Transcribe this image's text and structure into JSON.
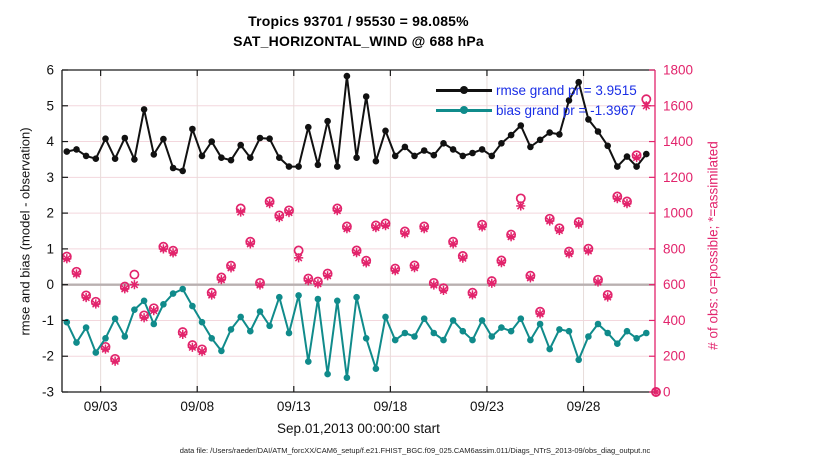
{
  "title": {
    "line1": "Tropics 93701 / 95530 = 98.085%",
    "line2": "SAT_HORIZONTAL_WIND @ 688 hPa"
  },
  "legend": {
    "items": [
      {
        "label": "rmse grand pr = 3.9515",
        "series": "rmse"
      },
      {
        "label": "bias grand pr = -1.3967",
        "series": "bias"
      }
    ],
    "text_color": "#1a2ee6"
  },
  "footer": {
    "datafile": "data file: /Users/raeder/DAI/ATM_forcXX/CAM6_setup/f.e21.FHIST_BGC.f09_025.CAM6assim.011/Diags_NTrS_2013-09/obs_diag_output.nc"
  },
  "colors": {
    "rmse": "#111111",
    "bias": "#108b8b",
    "obs": "#e2246c",
    "grid_h": "#f3d7dd",
    "grid_v": "#e7dcda",
    "zero_line": "#b9b0b0",
    "frame": "#1a1a1a",
    "tick_label_left": "#111111"
  },
  "chart_data": {
    "type": "line",
    "title": "Tropics 93701 / 95530 = 98.085%",
    "subtitle": "SAT_HORIZONTAL_WIND @ 688 hPa",
    "xlabel": "Sep.01,2013 00:00:00 start",
    "ylabel_left": "rmse and bias (model - observation)",
    "ylabel_right": "# of obs: o=possible; *=assimilated",
    "grid": true,
    "legend_position": "top-right-inside",
    "xlim_days": [
      1.0,
      31.7
    ],
    "ylim_left": [
      -3,
      6
    ],
    "ylim_right": [
      0,
      1800
    ],
    "xticks": {
      "positions": [
        3,
        8,
        13,
        18,
        23,
        28
      ],
      "labels": [
        "09/03",
        "09/08",
        "09/13",
        "09/18",
        "09/23",
        "09/28"
      ]
    },
    "yticks_left": [
      -3,
      -2,
      -1,
      0,
      1,
      2,
      3,
      4,
      5,
      6
    ],
    "yticks_right": [
      0,
      200,
      400,
      600,
      800,
      1000,
      1200,
      1400,
      1600,
      1800
    ],
    "zero_reference_line": 0,
    "x_days": [
      1.25,
      1.75,
      2.25,
      2.75,
      3.25,
      3.75,
      4.25,
      4.75,
      5.25,
      5.75,
      6.25,
      6.75,
      7.25,
      7.75,
      8.25,
      8.75,
      9.25,
      9.75,
      10.25,
      10.75,
      11.25,
      11.75,
      12.25,
      12.75,
      13.25,
      13.75,
      14.25,
      14.75,
      15.25,
      15.75,
      16.25,
      16.75,
      17.25,
      17.75,
      18.25,
      18.75,
      19.25,
      19.75,
      20.25,
      20.75,
      21.25,
      21.75,
      22.25,
      22.75,
      23.25,
      23.75,
      24.25,
      24.75,
      25.25,
      25.75,
      26.25,
      26.75,
      27.25,
      27.75,
      28.25,
      28.75,
      29.25,
      29.75,
      30.25,
      30.75,
      31.25,
      31.75
    ],
    "series": [
      {
        "name": "rmse",
        "axis": "left",
        "color": "#111111",
        "marker": "dot",
        "grand_value": 3.9515,
        "values": [
          3.72,
          3.78,
          3.6,
          3.52,
          4.08,
          3.52,
          4.1,
          3.5,
          4.9,
          3.64,
          4.07,
          3.26,
          3.18,
          4.35,
          3.6,
          4.0,
          3.55,
          3.48,
          3.9,
          3.55,
          4.1,
          4.08,
          3.55,
          3.3,
          3.3,
          4.4,
          3.35,
          4.57,
          3.3,
          5.83,
          3.55,
          5.26,
          3.45,
          4.3,
          3.6,
          3.85,
          3.6,
          3.75,
          3.62,
          3.95,
          3.78,
          3.6,
          3.68,
          3.78,
          3.6,
          3.95,
          4.18,
          4.45,
          3.85,
          4.05,
          4.25,
          4.2,
          5.15,
          5.66,
          4.62,
          4.28,
          3.88,
          3.3,
          3.58,
          3.3,
          3.65,
          null
        ]
      },
      {
        "name": "bias",
        "axis": "left",
        "color": "#108b8b",
        "marker": "dot",
        "grand_value": -1.3967,
        "values": [
          -1.05,
          -1.62,
          -1.2,
          -1.9,
          -1.5,
          -0.95,
          -1.45,
          -0.7,
          -0.45,
          -1.1,
          -0.55,
          -0.25,
          -0.12,
          -0.6,
          -1.05,
          -1.5,
          -1.85,
          -1.25,
          -0.9,
          -1.3,
          -0.75,
          -1.15,
          -0.35,
          -1.35,
          -0.3,
          -2.15,
          -0.4,
          -2.5,
          -0.45,
          -2.6,
          -0.35,
          -1.5,
          -2.35,
          -0.9,
          -1.55,
          -1.35,
          -1.45,
          -0.95,
          -1.35,
          -1.55,
          -1.0,
          -1.3,
          -1.55,
          -1.0,
          -1.45,
          -1.2,
          -1.3,
          -0.95,
          -1.55,
          -1.1,
          -1.8,
          -1.25,
          -1.3,
          -2.1,
          -1.45,
          -1.1,
          -1.35,
          -1.65,
          -1.3,
          -1.5,
          -1.35,
          null
        ]
      },
      {
        "name": "possible",
        "axis": "right",
        "color": "#e2246c",
        "marker": "circle-open",
        "values": [
          757,
          672,
          540,
          504,
          252,
          185,
          589,
          656,
          428,
          468,
          812,
          790,
          335,
          262,
          238,
          555,
          640,
          706,
          1026,
          840,
          610,
          1065,
          987,
          1015,
          791,
          634,
          617,
          662,
          1026,
          925,
          791,
          734,
          931,
          942,
          690,
          897,
          707,
          925,
          610,
          580,
          840,
          760,
          555,
          935,
          620,
          735,
          880,
          1082,
          650,
          449,
          968,
          915,
          785,
          950,
          801,
          627,
          543,
          1093,
          1065,
          1323,
          1637,
          0
        ]
      },
      {
        "name": "assimilated",
        "axis": "right",
        "color": "#e2246c",
        "marker": "asterisk",
        "values": [
          745,
          660,
          528,
          492,
          240,
          172,
          577,
          600,
          415,
          455,
          800,
          778,
          322,
          250,
          226,
          542,
          628,
          694,
          1006,
          828,
          598,
          1053,
          975,
          1003,
          750,
          622,
          605,
          650,
          1014,
          913,
          779,
          722,
          919,
          930,
          678,
          885,
          695,
          913,
          598,
          568,
          828,
          748,
          543,
          923,
          608,
          723,
          868,
          1040,
          638,
          437,
          956,
          903,
          773,
          938,
          789,
          615,
          531,
          1081,
          1053,
          1311,
          1600,
          0
        ]
      }
    ]
  }
}
